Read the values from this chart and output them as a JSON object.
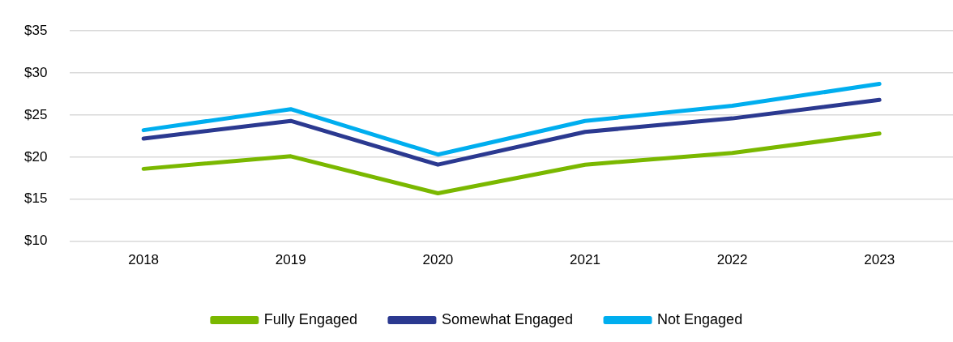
{
  "chart_data": {
    "type": "line",
    "categories": [
      "2018",
      "2019",
      "2020",
      "2021",
      "2022",
      "2023"
    ],
    "series": [
      {
        "name": "Fully Engaged",
        "color": "#7ab800",
        "values": [
          18.6,
          20.1,
          15.7,
          19.1,
          20.5,
          22.8
        ]
      },
      {
        "name": "Somewhat Engaged",
        "color": "#2b3990",
        "values": [
          22.2,
          24.3,
          19.1,
          23.0,
          24.6,
          26.8
        ]
      },
      {
        "name": "Not Engaged",
        "color": "#00aeef",
        "values": [
          23.2,
          25.7,
          20.3,
          24.3,
          26.1,
          28.7
        ]
      }
    ],
    "ylim": [
      10,
      35
    ],
    "yticks": [
      {
        "value": 10,
        "label": "$10"
      },
      {
        "value": 15,
        "label": "$15"
      },
      {
        "value": 20,
        "label": "$20"
      },
      {
        "value": 25,
        "label": "$25"
      },
      {
        "value": 30,
        "label": "$30"
      },
      {
        "value": 35,
        "label": "$35"
      }
    ],
    "grid": "y",
    "legend": "bottom",
    "marker": "none",
    "line_style": "solid"
  }
}
